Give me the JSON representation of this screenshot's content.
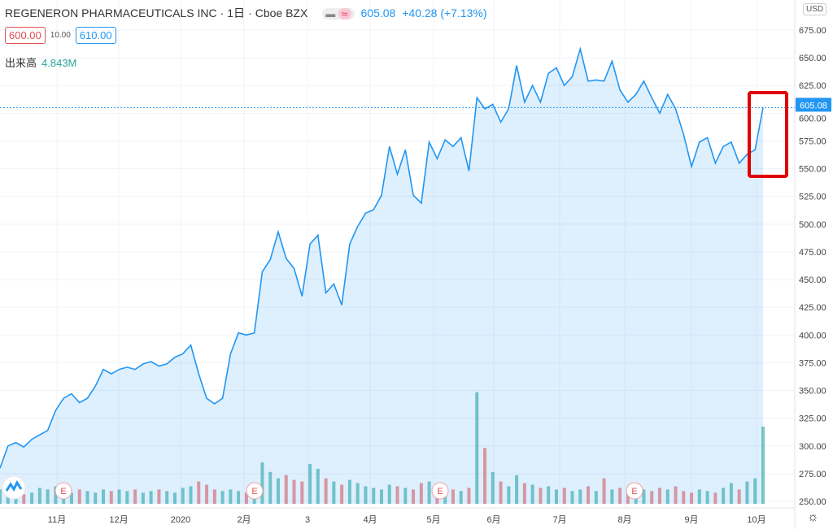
{
  "header": {
    "symbol": "REGENERON PHARMACEUTICALS INC",
    "interval": "1日",
    "exchange": "Cboe BZX",
    "price": "605.08",
    "change": "+40.28 (+7.13%)",
    "bid": "600.00",
    "spread": "10.00",
    "ask": "610.00",
    "volume_label": "出来高",
    "volume_value": "4.843M",
    "currency": "USD",
    "separator": "·"
  },
  "colors": {
    "line": "#2196f3",
    "up": "#26a69a",
    "down": "#ef5350",
    "highlight": "#e00000"
  },
  "chart_data": {
    "type": "area",
    "title": "REGENERON PHARMACEUTICALS INC · 1日 · Cboe BZX",
    "ylabel": "USD",
    "ylim": [
      250,
      675
    ],
    "yticks": [
      "675.00",
      "650.00",
      "625.00",
      "600.00",
      "575.00",
      "550.00",
      "525.00",
      "500.00",
      "475.00",
      "450.00",
      "425.00",
      "400.00",
      "375.00",
      "350.00",
      "325.00",
      "300.00",
      "275.00",
      "250.00"
    ],
    "xticks": [
      "11月",
      "12月",
      "2020",
      "2月",
      "3",
      "4月",
      "5月",
      "6月",
      "7月",
      "8月",
      "9月",
      "10月"
    ],
    "last_price_label": "605.08",
    "earnings_marker": "E",
    "price": [
      280,
      300,
      303,
      299,
      306,
      310,
      314,
      332,
      343,
      347,
      339,
      343,
      354,
      369,
      365,
      369,
      371,
      369,
      374,
      376,
      372,
      374,
      380,
      383,
      391,
      365,
      343,
      338,
      343,
      383,
      402,
      400,
      402,
      457,
      468,
      493,
      469,
      460,
      435,
      482,
      490,
      438,
      446,
      427,
      482,
      498,
      510,
      513,
      526,
      570,
      545,
      567,
      526,
      519,
      574,
      559,
      576,
      570,
      578,
      548,
      614,
      604,
      608,
      592,
      604,
      643,
      610,
      625,
      610,
      636,
      641,
      625,
      633,
      658,
      629,
      630,
      629,
      647,
      621,
      610,
      617,
      629,
      614,
      600,
      617,
      604,
      581,
      552,
      574,
      578,
      555,
      570,
      574,
      555,
      563,
      567,
      605.08
    ],
    "volume_millions": [
      0.9,
      0.7,
      0.8,
      0.6,
      0.7,
      1.0,
      0.9,
      1.1,
      0.8,
      0.7,
      0.9,
      0.8,
      0.7,
      0.9,
      0.8,
      0.9,
      0.8,
      0.9,
      0.7,
      0.8,
      0.9,
      0.8,
      0.7,
      1.0,
      1.1,
      1.4,
      1.2,
      0.9,
      0.8,
      0.9,
      0.8,
      0.7,
      0.8,
      2.6,
      2.0,
      1.6,
      1.8,
      1.5,
      1.4,
      2.5,
      2.2,
      1.6,
      1.4,
      1.2,
      1.5,
      1.3,
      1.1,
      1.0,
      0.9,
      1.2,
      1.1,
      1.0,
      0.9,
      1.3,
      1.4,
      1.2,
      1.0,
      0.9,
      0.8,
      1.0,
      7.0,
      3.5,
      2.0,
      1.4,
      1.1,
      1.8,
      1.3,
      1.2,
      1.0,
      1.1,
      0.9,
      1.0,
      0.8,
      0.9,
      1.1,
      0.8,
      1.6,
      0.9,
      1.0,
      0.8,
      0.7,
      0.9,
      0.8,
      1.0,
      0.9,
      1.1,
      0.8,
      0.7,
      0.9,
      0.8,
      0.7,
      1.0,
      1.3,
      0.9,
      1.4,
      1.6,
      4.843
    ]
  },
  "earnings_positions_index": [
    8,
    29,
    58,
    82
  ]
}
